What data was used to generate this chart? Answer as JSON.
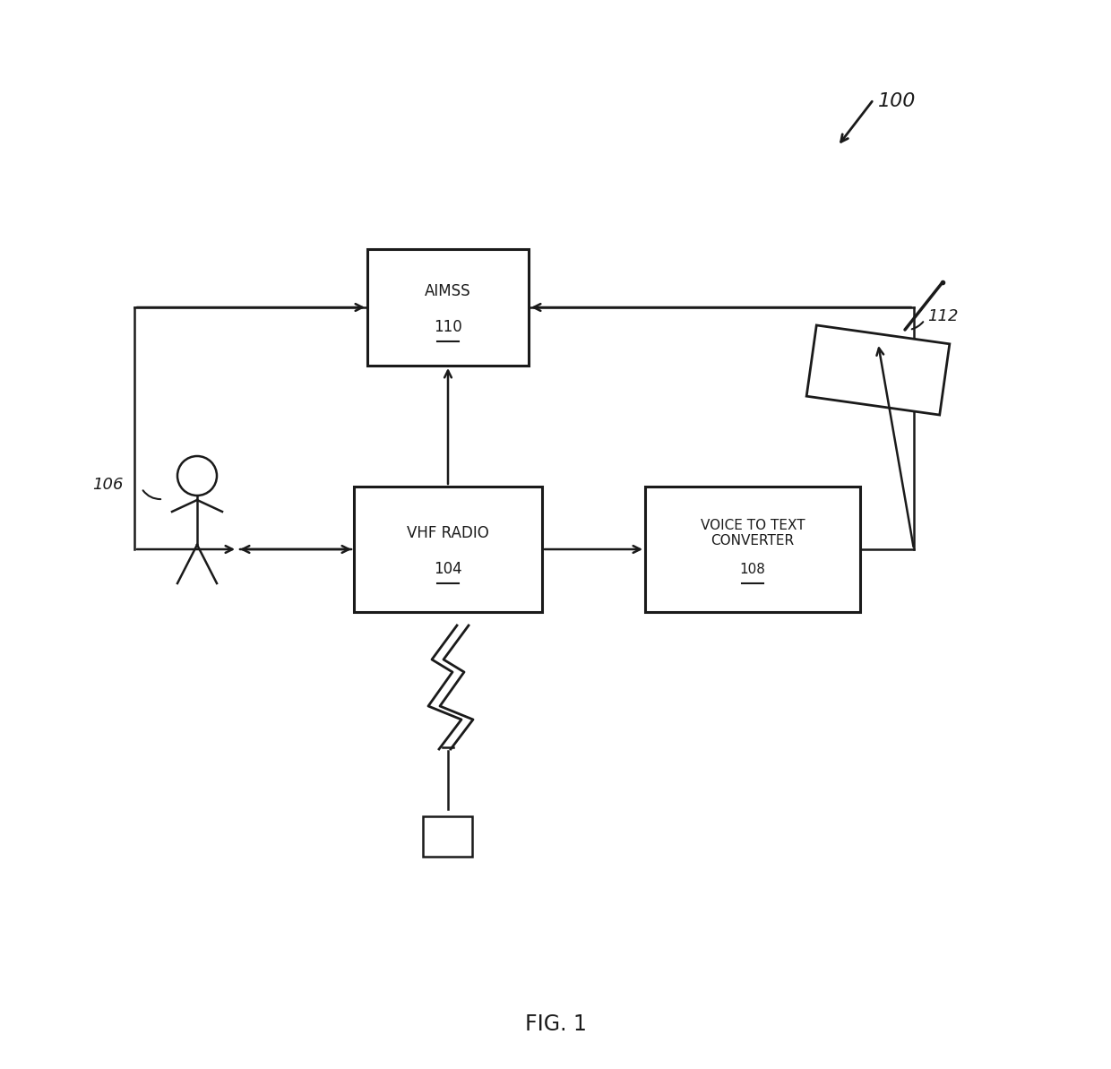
{
  "bg_color": "#ffffff",
  "line_color": "#1a1a1a",
  "fig_label": "FIG. 1",
  "ref_100": "100",
  "ref_104": "104",
  "ref_106": "106",
  "ref_108": "108",
  "ref_110": "110",
  "ref_112": "112",
  "box_aimss_label": "AIMSS",
  "box_aimss_num": "110",
  "box_vhf_label": "VHF RADIO",
  "box_vhf_num": "104",
  "box_voice_label": "VOICE TO TEXT\nCONVERTER",
  "box_voice_num": "108"
}
